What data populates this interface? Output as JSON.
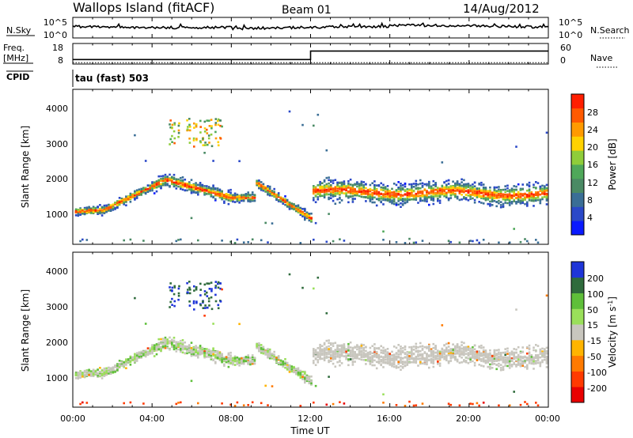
{
  "header": {
    "station": "Wallops Island (fitACF)",
    "beam": "Beam 01",
    "date": "14/Aug/2012"
  },
  "noise_panel": {
    "left_label": "N.Sky",
    "right_label": "N.Search",
    "left_ticks": [
      "10^5",
      "10^0"
    ],
    "right_ticks": [
      "10^5",
      "10^0"
    ]
  },
  "freq_panel": {
    "left_label_line1": "Freq.",
    "left_label_line2": "[MHz]",
    "right_label": "Nave",
    "left_ticks": [
      "18",
      "8"
    ],
    "right_ticks": [
      "60",
      "0"
    ],
    "freq_series": [
      [
        0,
        10.2
      ],
      [
        12.0,
        10.2
      ],
      [
        12.0,
        14.3
      ],
      [
        24,
        14.3
      ]
    ],
    "nave_series": [
      [
        0,
        4
      ],
      [
        24,
        4
      ]
    ]
  },
  "cpid": {
    "label": "CPID",
    "text": "tau (fast) 503"
  },
  "chart_data": [
    {
      "type": "heatmap",
      "quantity": "Power",
      "ylabel": "Slant Range [km]",
      "ylim": [
        180,
        4500
      ],
      "yticks": [
        "1000",
        "2000",
        "3000",
        "4000"
      ],
      "xlim_hours": [
        0,
        24
      ],
      "colorbar": {
        "label": "Power [dB]",
        "range": [
          0,
          32
        ],
        "ticks": [
          "4",
          "8",
          "12",
          "16",
          "20",
          "24",
          "28"
        ],
        "colors": [
          "#0a1aff",
          "#2a48c8",
          "#3a6e96",
          "#4a8a64",
          "#4fa85a",
          "#8fcd3a",
          "#ffd200",
          "#ff9a00",
          "#ff5a00",
          "#ff1e00"
        ]
      }
    },
    {
      "type": "heatmap",
      "quantity": "Velocity",
      "ylabel": "Slant Range [km]",
      "ylim": [
        180,
        4500
      ],
      "yticks": [
        "1000",
        "2000",
        "3000",
        "4000"
      ],
      "xlim_hours": [
        0,
        24
      ],
      "colorbar": {
        "label_main": "Velocity",
        "label_units": "[m s",
        "label_exp": "-1",
        "label_close": "]",
        "ticks": [
          "200",
          "100",
          "50",
          "15",
          "-15",
          "-50",
          "-100",
          "-200"
        ],
        "colors": [
          "#1f35d8",
          "#2f6b3c",
          "#5fbf3a",
          "#9adf5a",
          "#c8c6be",
          "#ffb400",
          "#ff7a00",
          "#ff3a00",
          "#e80000"
        ]
      }
    }
  ],
  "x_axis": {
    "label": "Time UT",
    "ticks": [
      "00:00",
      "04:00",
      "08:00",
      "12:00",
      "16:00",
      "20:00",
      "00:00"
    ]
  }
}
